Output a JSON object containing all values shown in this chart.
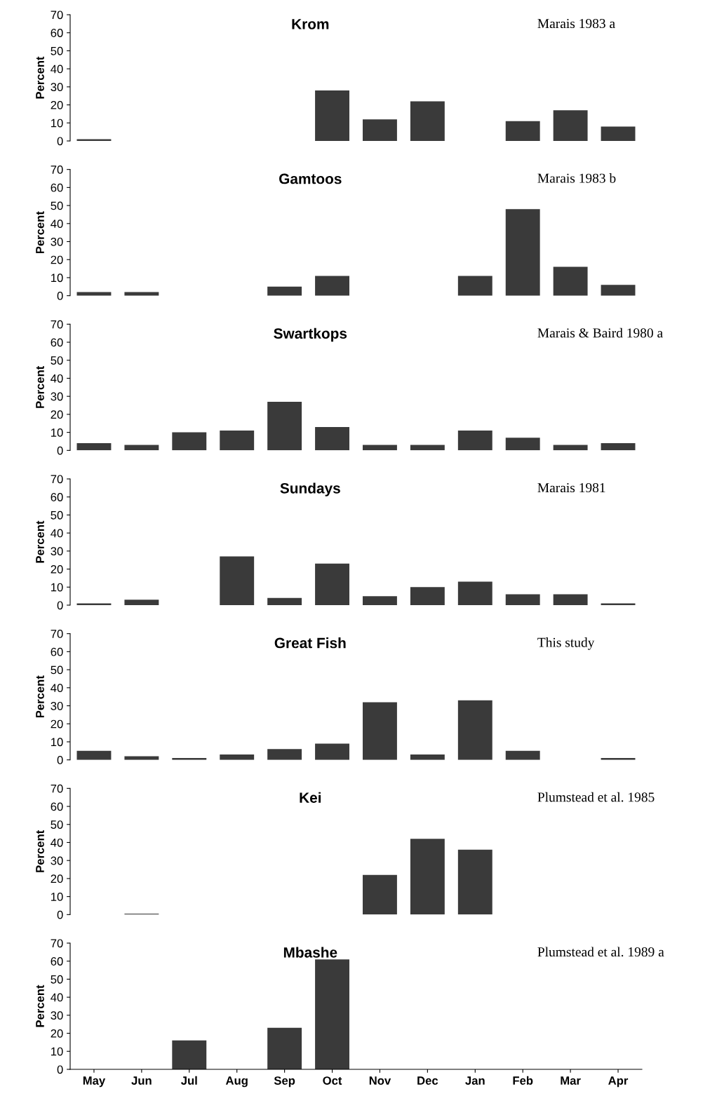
{
  "chart_data": [
    {
      "type": "bar",
      "title": "Krom",
      "ylabel": "Percent",
      "annotations": [
        "Marais 1983 a"
      ],
      "categories": [
        "May",
        "Jun",
        "Jul",
        "Aug",
        "Sep",
        "Oct",
        "Nov",
        "Dec",
        "Jan",
        "Feb",
        "Mar",
        "Apr"
      ],
      "values": [
        1,
        null,
        null,
        null,
        null,
        28,
        12,
        22,
        null,
        11,
        17,
        8
      ],
      "color": "#3a3a3a",
      "ylim": [
        0,
        70
      ],
      "yticks": [
        0,
        10,
        20,
        30,
        40,
        50,
        60,
        70
      ],
      "tick_labels": "y"
    },
    {
      "type": "bar",
      "title": "Gamtoos",
      "ylabel": "Percent",
      "annotations": [
        "Marais 1983 b"
      ],
      "categories": [
        "May",
        "Jun",
        "Jul",
        "Aug",
        "Sep",
        "Oct",
        "Nov",
        "Dec",
        "Jan",
        "Feb",
        "Mar",
        "Apr"
      ],
      "values": [
        2,
        2,
        null,
        null,
        5,
        11,
        null,
        null,
        11,
        48,
        16,
        6
      ],
      "color": "#3a3a3a",
      "ylim": [
        0,
        70
      ],
      "yticks": [
        0,
        10,
        20,
        30,
        40,
        50,
        60,
        70
      ],
      "tick_labels": "y"
    },
    {
      "type": "bar",
      "title": "Swartkops",
      "ylabel": "Percent",
      "annotations": [
        "Marais & Baird 1980 a"
      ],
      "categories": [
        "May",
        "Jun",
        "Jul",
        "Aug",
        "Sep",
        "Oct",
        "Nov",
        "Dec",
        "Jan",
        "Feb",
        "Mar",
        "Apr"
      ],
      "values": [
        4,
        3,
        10,
        11,
        27,
        13,
        3,
        3,
        11,
        7,
        3,
        4
      ],
      "color": "#3a3a3a",
      "ylim": [
        0,
        70
      ],
      "yticks": [
        0,
        10,
        20,
        30,
        40,
        50,
        60,
        70
      ],
      "tick_labels": "y"
    },
    {
      "type": "bar",
      "title": "Sundays",
      "ylabel": "Percent",
      "annotations": [
        "Marais 1981"
      ],
      "categories": [
        "May",
        "Jun",
        "Jul",
        "Aug",
        "Sep",
        "Oct",
        "Nov",
        "Dec",
        "Jan",
        "Feb",
        "Mar",
        "Apr"
      ],
      "values": [
        1,
        3,
        null,
        27,
        4,
        23,
        5,
        10,
        13,
        6,
        6,
        1
      ],
      "color": "#3a3a3a",
      "ylim": [
        0,
        70
      ],
      "yticks": [
        0,
        10,
        20,
        30,
        40,
        50,
        60,
        70
      ],
      "tick_labels": "y"
    },
    {
      "type": "bar",
      "title": "Great Fish",
      "ylabel": "Percent",
      "annotations": [
        "This study"
      ],
      "categories": [
        "May",
        "Jun",
        "Jul",
        "Aug",
        "Sep",
        "Oct",
        "Nov",
        "Dec",
        "Jan",
        "Feb",
        "Mar",
        "Apr"
      ],
      "values": [
        5,
        2,
        1,
        3,
        6,
        9,
        32,
        3,
        33,
        5,
        null,
        1
      ],
      "color": "#3a3a3a",
      "ylim": [
        0,
        70
      ],
      "yticks": [
        0,
        10,
        20,
        30,
        40,
        50,
        60,
        70
      ],
      "tick_labels": "y"
    },
    {
      "type": "bar",
      "title": "Kei",
      "ylabel": "Percent",
      "annotations": [
        "Plumstead et al. 1985"
      ],
      "categories": [
        "May",
        "Jun",
        "Jul",
        "Aug",
        "Sep",
        "Oct",
        "Nov",
        "Dec",
        "Jan",
        "Feb",
        "Mar",
        "Apr"
      ],
      "values": [
        null,
        0.5,
        null,
        null,
        null,
        null,
        22,
        42,
        36,
        null,
        null,
        null
      ],
      "color": "#3a3a3a",
      "ylim": [
        0,
        70
      ],
      "yticks": [
        0,
        10,
        20,
        30,
        40,
        50,
        60,
        70
      ],
      "tick_labels": "y"
    },
    {
      "type": "bar",
      "title": "Mbashe",
      "ylabel": "Percent",
      "annotations": [
        "Plumstead et al. 1989 a"
      ],
      "categories": [
        "May",
        "Jun",
        "Jul",
        "Aug",
        "Sep",
        "Oct",
        "Nov",
        "Dec",
        "Jan",
        "Feb",
        "Mar",
        "Apr"
      ],
      "values": [
        null,
        null,
        16,
        null,
        23,
        61,
        null,
        null,
        null,
        null,
        null,
        null
      ],
      "color": "#3a3a3a",
      "ylim": [
        0,
        70
      ],
      "yticks": [
        0,
        10,
        20,
        30,
        40,
        50,
        60,
        70
      ]
    }
  ]
}
